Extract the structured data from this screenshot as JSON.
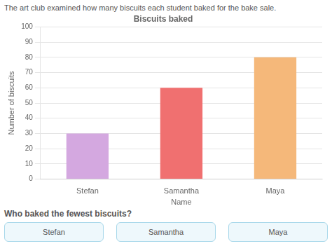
{
  "chart_data": {
    "type": "bar",
    "title": "Biscuits baked",
    "subtitle": "The art club examined how many biscuits each student baked for the bake sale.",
    "x_label": "Name",
    "y_label": "Number of biscuits",
    "categories": [
      "Stefan",
      "Samantha",
      "Maya"
    ],
    "values": [
      30,
      60,
      80
    ],
    "colors": [
      "#d4a8e0",
      "#f07070",
      "#f5b87a"
    ],
    "ylim": [
      0,
      100
    ],
    "yticks": [
      0,
      10,
      20,
      30,
      40,
      50,
      60,
      70,
      80,
      90,
      100
    ],
    "grid": true,
    "annotations": [
      "Who baked the fewest biscuits?",
      "Stefan",
      "Samantha",
      "Maya"
    ]
  }
}
